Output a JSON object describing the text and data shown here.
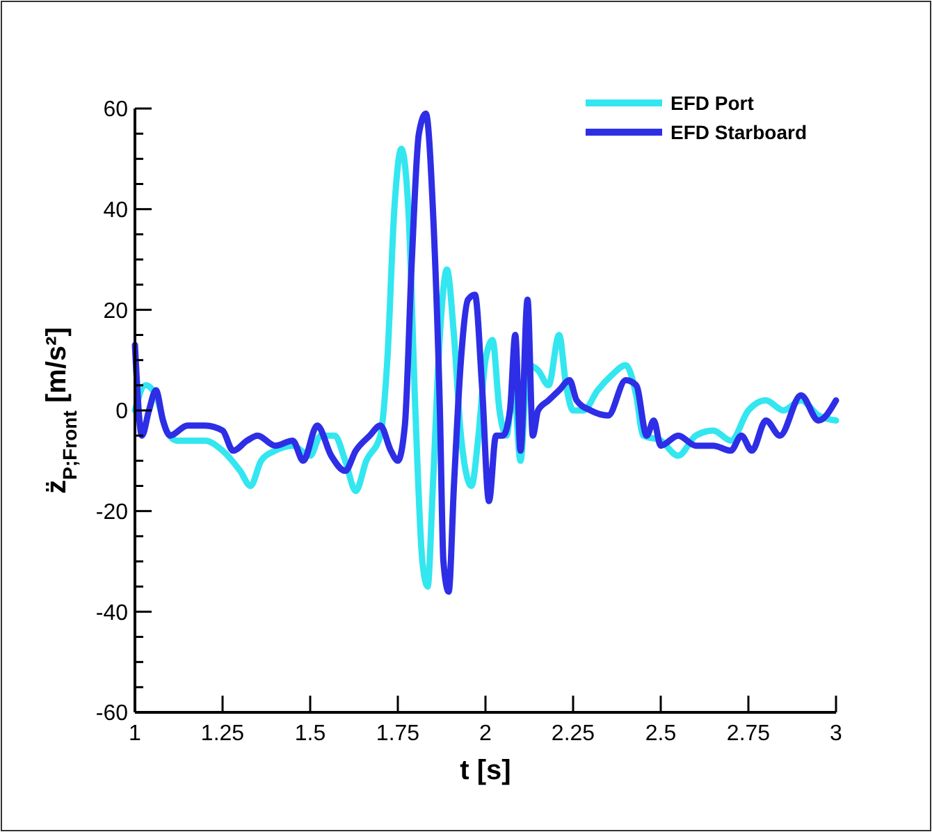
{
  "chart_data": {
    "type": "line",
    "xlabel": "t [s]",
    "ylabel": "z̈$_{P;Front}$ [m/s²]",
    "xlim": [
      1,
      3
    ],
    "xticks": [
      1,
      1.25,
      1.5,
      1.75,
      2,
      2.25,
      2.5,
      2.75,
      3
    ],
    "ylim": [
      -60,
      60
    ],
    "yticks": [
      -60,
      {
        "value": -55,
        "label": null
      },
      {
        "value": -50,
        "label": null
      },
      {
        "value": -45,
        "label": null
      },
      -40,
      {
        "value": -35,
        "label": null
      },
      {
        "value": -30,
        "label": null
      },
      {
        "value": -25,
        "label": null
      },
      -20,
      {
        "value": -15,
        "label": null
      },
      {
        "value": -10,
        "label": null
      },
      {
        "value": -5,
        "label": null
      },
      0,
      {
        "value": 5,
        "label": null
      },
      {
        "value": 10,
        "label": null
      },
      {
        "value": 15,
        "label": null
      },
      20,
      {
        "value": 25,
        "label": null
      },
      {
        "value": 30,
        "label": null
      },
      {
        "value": 35,
        "label": null
      },
      40,
      {
        "value": 45,
        "label": null
      },
      {
        "value": 50,
        "label": null
      },
      {
        "value": 55,
        "label": null
      },
      60
    ],
    "grid": false,
    "legend": "top right",
    "line_style": "solid",
    "marker": "none",
    "series": [
      {
        "name": "EFD Port",
        "color": "#33e6f0",
        "x": [
          1,
          1.03,
          1.06,
          1.09,
          1.12,
          1.2,
          1.25,
          1.3,
          1.33,
          1.36,
          1.4,
          1.45,
          1.5,
          1.53,
          1.57,
          1.6,
          1.63,
          1.66,
          1.7,
          1.72,
          1.74,
          1.76,
          1.78,
          1.8,
          1.82,
          1.835,
          1.85,
          1.87,
          1.89,
          1.91,
          1.93,
          1.96,
          1.98,
          2,
          2.02,
          2.04,
          2.06,
          2.08,
          2.1,
          2.12,
          2.15,
          2.18,
          2.21,
          2.23,
          2.25,
          2.28,
          2.32,
          2.36,
          2.4,
          2.43,
          2.45,
          2.5,
          2.55,
          2.6,
          2.65,
          2.7,
          2.75,
          2.8,
          2.85,
          2.9,
          2.95,
          3
        ],
        "values": [
          0,
          5,
          3,
          -4,
          -6,
          -6,
          -8,
          -12,
          -15,
          -10,
          -8,
          -7,
          -9,
          -5,
          -5,
          -10,
          -16,
          -10,
          -5,
          10,
          40,
          52,
          40,
          0,
          -30,
          -35,
          -15,
          15,
          28,
          15,
          -5,
          -15,
          -5,
          10,
          14,
          0,
          -5,
          5,
          -10,
          9,
          8,
          5,
          15,
          5,
          0,
          0,
          4,
          7,
          9,
          3,
          -5,
          -6,
          -9,
          -5,
          -4,
          -6,
          0,
          2,
          0,
          2,
          -1,
          -2
        ]
      },
      {
        "name": "EFD Starboard",
        "color": "#2e2ee6",
        "x": [
          1,
          1.02,
          1.04,
          1.06,
          1.08,
          1.1,
          1.15,
          1.2,
          1.25,
          1.28,
          1.32,
          1.35,
          1.4,
          1.45,
          1.48,
          1.52,
          1.56,
          1.6,
          1.63,
          1.67,
          1.7,
          1.73,
          1.75,
          1.77,
          1.79,
          1.81,
          1.83,
          1.85,
          1.87,
          1.88,
          1.895,
          1.91,
          1.93,
          1.95,
          1.97,
          1.99,
          2.01,
          2.03,
          2.05,
          2.07,
          2.085,
          2.1,
          2.12,
          2.135,
          2.15,
          2.18,
          2.21,
          2.24,
          2.26,
          2.3,
          2.35,
          2.4,
          2.43,
          2.46,
          2.48,
          2.5,
          2.55,
          2.6,
          2.65,
          2.7,
          2.73,
          2.76,
          2.8,
          2.84,
          2.9,
          2.95,
          3
        ],
        "values": [
          13,
          -5,
          0,
          4,
          -2,
          -5,
          -3,
          -3,
          -4,
          -8,
          -6,
          -5,
          -7,
          -6,
          -10,
          -3,
          -9,
          -12,
          -8,
          -5,
          -3,
          -8,
          -10,
          -3,
          30,
          55,
          59,
          40,
          0,
          -30,
          -36,
          -15,
          10,
          22,
          23,
          5,
          -18,
          -5,
          -5,
          0,
          15,
          -8,
          22,
          -5,
          0,
          2,
          4,
          6,
          2,
          0,
          -1,
          6,
          5,
          -5,
          -2,
          -7,
          -5,
          -7,
          -7,
          -8,
          -5,
          -8,
          -2,
          -5,
          3,
          -2,
          2
        ]
      }
    ]
  }
}
